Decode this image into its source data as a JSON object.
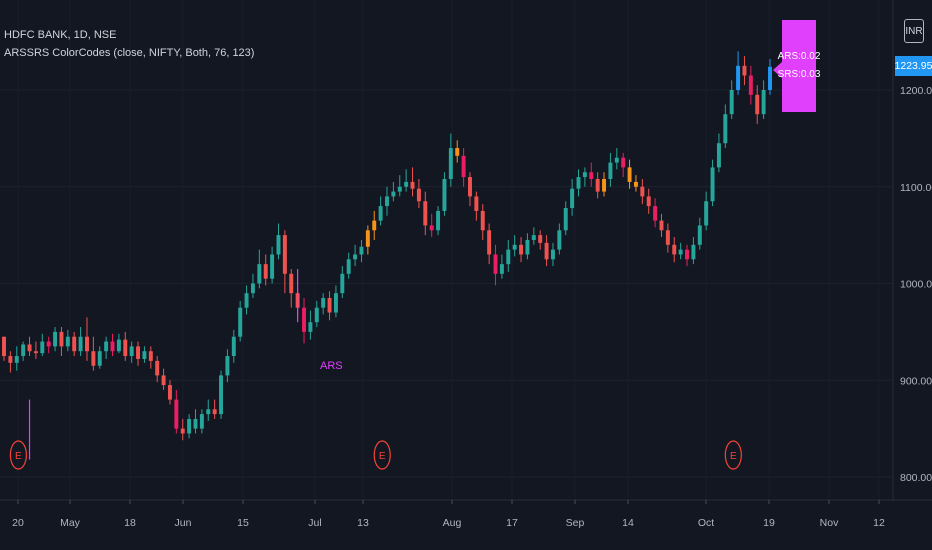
{
  "header": {
    "symbol_line": "HDFC BANK, 1D, NSE",
    "study_line": "ARSSRS ColorCodes (close, NIFTY, Both, 76, 123)"
  },
  "currency": "INR",
  "last_price": "1223.95",
  "callout": {
    "ars": "ARS:0.02",
    "srs": "SRS:0.03"
  },
  "ars_marker": "ARS",
  "earnings_marker": "E",
  "colors": {
    "background": "#131722",
    "up": "#26a69a",
    "down": "#ef5350",
    "highlight_up": "#f7931a",
    "highlight_down": "#e91e63",
    "last_up": "#2196f3",
    "marker": "#e040fb",
    "earnings": "#f44336"
  },
  "chart_data": {
    "type": "candlestick",
    "y_axis": {
      "min": 790,
      "max": 1250,
      "ticks": [
        "800.00",
        "900.00",
        "1000.00",
        "1100.00",
        "1200.00"
      ]
    },
    "x_axis": {
      "ticks": [
        "20",
        "May",
        "18",
        "Jun",
        "15",
        "Jul",
        "13",
        "Aug",
        "17",
        "Sep",
        "14",
        "Oct",
        "19",
        "Nov",
        "12"
      ]
    },
    "grid": true,
    "candles": [
      [
        945,
        925,
        945,
        920,
        "d"
      ],
      [
        925,
        918,
        930,
        908,
        "d"
      ],
      [
        918,
        925,
        935,
        910,
        "u"
      ],
      [
        925,
        937,
        940,
        920,
        "u"
      ],
      [
        937,
        930,
        945,
        925,
        "d"
      ],
      [
        930,
        928,
        940,
        922,
        "d"
      ],
      [
        928,
        940,
        948,
        925,
        "u"
      ],
      [
        940,
        935,
        945,
        928,
        "d"
      ],
      [
        935,
        950,
        955,
        930,
        "u"
      ],
      [
        950,
        935,
        955,
        925,
        "d"
      ],
      [
        935,
        945,
        952,
        930,
        "u"
      ],
      [
        945,
        930,
        950,
        925,
        "d"
      ],
      [
        930,
        945,
        955,
        925,
        "u"
      ],
      [
        945,
        930,
        965,
        920,
        "d"
      ],
      [
        930,
        915,
        945,
        910,
        "d"
      ],
      [
        915,
        930,
        935,
        912,
        "u"
      ],
      [
        930,
        940,
        945,
        922,
        "u"
      ],
      [
        940,
        930,
        948,
        925,
        "d"
      ],
      [
        930,
        942,
        948,
        928,
        "u"
      ],
      [
        942,
        925,
        950,
        920,
        "d"
      ],
      [
        925,
        935,
        940,
        918,
        "u"
      ],
      [
        935,
        922,
        940,
        915,
        "d"
      ],
      [
        922,
        930,
        935,
        918,
        "u"
      ],
      [
        930,
        920,
        935,
        912,
        "d"
      ],
      [
        920,
        905,
        925,
        898,
        "d"
      ],
      [
        905,
        895,
        912,
        890,
        "d"
      ],
      [
        895,
        880,
        900,
        875,
        "d"
      ],
      [
        880,
        850,
        890,
        845,
        "d"
      ],
      [
        850,
        845,
        860,
        838,
        "d"
      ],
      [
        845,
        860,
        865,
        840,
        "u"
      ],
      [
        860,
        850,
        870,
        845,
        "u"
      ],
      [
        850,
        865,
        870,
        845,
        "u"
      ],
      [
        865,
        870,
        880,
        858,
        "u"
      ],
      [
        870,
        865,
        880,
        860,
        "d"
      ],
      [
        865,
        905,
        910,
        860,
        "u"
      ],
      [
        905,
        925,
        932,
        898,
        "u"
      ],
      [
        925,
        945,
        952,
        918,
        "u"
      ],
      [
        945,
        975,
        982,
        940,
        "u"
      ],
      [
        975,
        990,
        998,
        968,
        "u"
      ],
      [
        990,
        1000,
        1010,
        985,
        "u"
      ],
      [
        1000,
        1020,
        1035,
        995,
        "u"
      ],
      [
        1020,
        1005,
        1030,
        998,
        "d"
      ],
      [
        1005,
        1030,
        1038,
        1000,
        "u"
      ],
      [
        1030,
        1050,
        1062,
        1025,
        "u"
      ],
      [
        1050,
        1010,
        1055,
        990,
        "d"
      ],
      [
        1010,
        990,
        1015,
        975,
        "d"
      ],
      [
        990,
        975,
        995,
        965,
        "d"
      ],
      [
        975,
        950,
        985,
        938,
        "d"
      ],
      [
        950,
        960,
        972,
        942,
        "u"
      ],
      [
        960,
        975,
        982,
        955,
        "u"
      ],
      [
        975,
        985,
        990,
        968,
        "u"
      ],
      [
        985,
        970,
        992,
        962,
        "d"
      ],
      [
        970,
        990,
        998,
        965,
        "u"
      ],
      [
        990,
        1010,
        1018,
        985,
        "u"
      ],
      [
        1010,
        1025,
        1032,
        1005,
        "u"
      ],
      [
        1025,
        1030,
        1040,
        1018,
        "u"
      ],
      [
        1030,
        1038,
        1045,
        1022,
        "u"
      ],
      [
        1038,
        1055,
        1060,
        1030,
        "h"
      ],
      [
        1055,
        1065,
        1075,
        1045,
        "h"
      ],
      [
        1065,
        1080,
        1090,
        1060,
        "u"
      ],
      [
        1080,
        1090,
        1100,
        1070,
        "u"
      ],
      [
        1090,
        1095,
        1105,
        1085,
        "u"
      ],
      [
        1095,
        1100,
        1112,
        1090,
        "u"
      ],
      [
        1100,
        1105,
        1118,
        1095,
        "u"
      ],
      [
        1105,
        1098,
        1120,
        1090,
        "d"
      ],
      [
        1098,
        1085,
        1108,
        1078,
        "d"
      ],
      [
        1085,
        1060,
        1095,
        1050,
        "d"
      ],
      [
        1060,
        1055,
        1072,
        1048,
        "d"
      ],
      [
        1055,
        1075,
        1080,
        1050,
        "u"
      ],
      [
        1075,
        1108,
        1115,
        1070,
        "u"
      ],
      [
        1108,
        1140,
        1155,
        1100,
        "u"
      ],
      [
        1140,
        1132,
        1148,
        1125,
        "h"
      ],
      [
        1132,
        1110,
        1140,
        1100,
        "d"
      ],
      [
        1110,
        1090,
        1115,
        1080,
        "d"
      ],
      [
        1090,
        1075,
        1095,
        1065,
        "d"
      ],
      [
        1075,
        1055,
        1082,
        1045,
        "d"
      ],
      [
        1055,
        1030,
        1062,
        1020,
        "d"
      ],
      [
        1030,
        1010,
        1040,
        998,
        "d"
      ],
      [
        1010,
        1020,
        1030,
        1005,
        "u"
      ],
      [
        1020,
        1035,
        1045,
        1012,
        "u"
      ],
      [
        1035,
        1040,
        1050,
        1028,
        "u"
      ],
      [
        1040,
        1030,
        1048,
        1022,
        "d"
      ],
      [
        1030,
        1045,
        1052,
        1025,
        "u"
      ],
      [
        1045,
        1050,
        1058,
        1040,
        "u"
      ],
      [
        1050,
        1042,
        1055,
        1035,
        "d"
      ],
      [
        1042,
        1025,
        1050,
        1018,
        "d"
      ],
      [
        1025,
        1035,
        1042,
        1018,
        "u"
      ],
      [
        1035,
        1055,
        1062,
        1030,
        "u"
      ],
      [
        1055,
        1078,
        1085,
        1050,
        "u"
      ],
      [
        1078,
        1098,
        1108,
        1070,
        "u"
      ],
      [
        1098,
        1110,
        1118,
        1090,
        "u"
      ],
      [
        1110,
        1115,
        1120,
        1100,
        "u"
      ],
      [
        1115,
        1108,
        1125,
        1100,
        "d"
      ],
      [
        1108,
        1095,
        1115,
        1088,
        "d"
      ],
      [
        1095,
        1108,
        1115,
        1090,
        "h"
      ],
      [
        1108,
        1125,
        1135,
        1100,
        "u"
      ],
      [
        1125,
        1130,
        1140,
        1118,
        "u"
      ],
      [
        1130,
        1120,
        1135,
        1110,
        "d"
      ],
      [
        1120,
        1105,
        1128,
        1098,
        "h"
      ],
      [
        1105,
        1100,
        1112,
        1095,
        "h"
      ],
      [
        1100,
        1090,
        1108,
        1082,
        "d"
      ],
      [
        1090,
        1080,
        1098,
        1072,
        "d"
      ],
      [
        1080,
        1065,
        1088,
        1058,
        "d"
      ],
      [
        1065,
        1055,
        1072,
        1048,
        "d"
      ],
      [
        1055,
        1040,
        1062,
        1032,
        "d"
      ],
      [
        1040,
        1030,
        1048,
        1022,
        "d"
      ],
      [
        1030,
        1035,
        1042,
        1025,
        "u"
      ],
      [
        1035,
        1025,
        1040,
        1018,
        "d"
      ],
      [
        1025,
        1040,
        1048,
        1020,
        "u"
      ],
      [
        1040,
        1060,
        1068,
        1035,
        "u"
      ],
      [
        1060,
        1085,
        1095,
        1055,
        "u"
      ],
      [
        1085,
        1120,
        1128,
        1080,
        "u"
      ],
      [
        1120,
        1145,
        1155,
        1115,
        "u"
      ],
      [
        1145,
        1175,
        1185,
        1140,
        "u"
      ],
      [
        1175,
        1200,
        1210,
        1170,
        "u"
      ],
      [
        1200,
        1225,
        1240,
        1195,
        "l"
      ],
      [
        1225,
        1215,
        1235,
        1205,
        "d"
      ],
      [
        1215,
        1195,
        1225,
        1185,
        "d"
      ],
      [
        1195,
        1175,
        1205,
        1165,
        "d"
      ],
      [
        1175,
        1200,
        1210,
        1170,
        "u"
      ],
      [
        1200,
        1223.95,
        1232,
        1195,
        "l"
      ]
    ],
    "volume_spikes": [
      {
        "index": 4,
        "high": 880,
        "low": 818
      },
      {
        "index": 46,
        "high": 1015,
        "low": 960
      }
    ],
    "earnings_index": [
      1,
      58,
      113
    ]
  }
}
